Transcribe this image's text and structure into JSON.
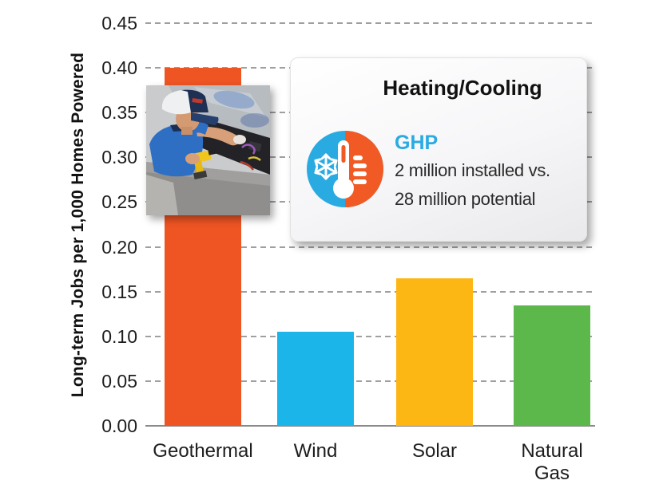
{
  "chart_data": {
    "type": "bar",
    "title": "",
    "xlabel": "",
    "ylabel": "Long-term Jobs per 1,000 Homes Powered",
    "categories": [
      "Geothermal",
      "Wind",
      "Solar",
      "Natural\nGas"
    ],
    "values": [
      0.4,
      0.105,
      0.165,
      0.135
    ],
    "bar_colors": [
      "#EF5423",
      "#1CB5EA",
      "#FDB714",
      "#5CB84A"
    ],
    "ylim": [
      0,
      0.45
    ],
    "yticks": [
      "0.45",
      "0.40",
      "0.35",
      "0.30",
      "0.25",
      "0.20",
      "0.15",
      "0.10",
      "0.05",
      "0.00"
    ],
    "grid": "horizontal dashed gray, legend none"
  },
  "callout": {
    "title": "Heating/Cooling",
    "label": "GHP",
    "label_color": "#29ABE2",
    "line1": "2 million installed vs.",
    "line2": "28 million potential",
    "icon": "heating-cooling-icon",
    "icon_colors": {
      "cool": "#29ABE2",
      "heat": "#F15A24"
    }
  },
  "photo": {
    "name": "technician-photo",
    "description": "Technician in cap and blue polo shirt using a yellow drill on open heat-pump equipment"
  }
}
